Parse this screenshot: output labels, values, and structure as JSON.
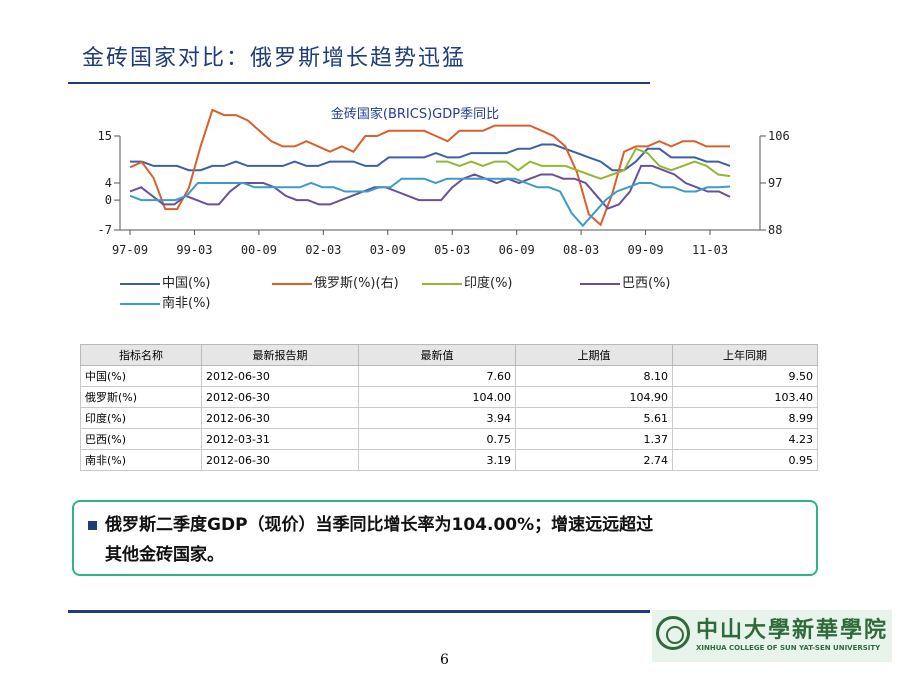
{
  "slide": {
    "title": "金砖国家对比：俄罗斯增长趋势迅猛",
    "page_number": "6"
  },
  "chart_data": {
    "type": "line",
    "title": "金砖国家(BRICS)GDP季同比",
    "x_ticks": [
      "97-09",
      "99-03",
      "00-09",
      "02-03",
      "03-09",
      "05-03",
      "06-09",
      "08-03",
      "09-09",
      "11-03"
    ],
    "left_y_ticks": [
      15,
      4,
      0,
      -7
    ],
    "right_y_ticks": [
      106,
      97,
      88
    ],
    "left_ylim": [
      -7,
      15
    ],
    "right_ylim": [
      88,
      106
    ],
    "series": [
      {
        "name": "中国(%)",
        "axis": "left",
        "color": "#3b5fa8",
        "values": [
          9,
          9,
          8,
          8,
          8,
          7,
          7,
          8,
          8,
          9,
          8,
          8,
          8,
          8,
          9,
          8,
          8,
          9,
          9,
          9,
          8,
          8,
          10,
          10,
          10,
          10,
          11,
          10,
          10,
          11,
          11,
          11,
          11,
          12,
          12,
          13,
          13,
          12,
          11,
          10,
          9,
          7,
          7,
          9,
          12,
          12,
          10,
          10,
          10,
          9,
          9,
          8
        ]
      },
      {
        "name": "俄罗斯(%)(右)",
        "axis": "right",
        "color": "#d9602a",
        "values": [
          100,
          101,
          98,
          92,
          92,
          96,
          104,
          111,
          110,
          110,
          109,
          107,
          105,
          104,
          104,
          105,
          104,
          103,
          104,
          103,
          106,
          106,
          107,
          107,
          107,
          107,
          106,
          105,
          107,
          107,
          107,
          108,
          108,
          108,
          108,
          107,
          106,
          104,
          99,
          91,
          89,
          95,
          103,
          104,
          104,
          105,
          104,
          105,
          105,
          104,
          104,
          104
        ]
      },
      {
        "name": "印度(%)",
        "axis": "left",
        "color": "#94b634",
        "values": [
          null,
          null,
          null,
          null,
          null,
          null,
          null,
          null,
          null,
          null,
          null,
          null,
          null,
          null,
          null,
          null,
          null,
          null,
          null,
          null,
          null,
          null,
          null,
          null,
          null,
          null,
          9,
          9,
          8,
          9,
          8,
          9,
          9,
          7,
          9,
          8,
          8,
          8,
          7,
          6,
          5,
          6,
          7,
          12,
          11,
          8,
          7,
          8,
          9,
          8,
          6,
          5.61
        ]
      },
      {
        "name": "巴西(%)",
        "axis": "left",
        "color": "#6a4f9c",
        "values": [
          2,
          3,
          1,
          -1,
          -1,
          1,
          0,
          -1,
          -1,
          2,
          4,
          4,
          4,
          3,
          1,
          0,
          0,
          -1,
          -1,
          0,
          1,
          2,
          3,
          3,
          2,
          1,
          0,
          0,
          0,
          3,
          5,
          6,
          5,
          4,
          5,
          4,
          5,
          6,
          6,
          5,
          5,
          4,
          1,
          -2,
          -1,
          2,
          8,
          8,
          7,
          6,
          4,
          3,
          2,
          2,
          0.75
        ]
      },
      {
        "name": "南非(%)",
        "axis": "left",
        "color": "#3a9cc9",
        "values": [
          1,
          0,
          0,
          0,
          0,
          1,
          4,
          4,
          4,
          4,
          4,
          3,
          3,
          3,
          3,
          3,
          4,
          3,
          3,
          2,
          2,
          2,
          3,
          3,
          5,
          5,
          5,
          4,
          5,
          5,
          5,
          5,
          5,
          5,
          5,
          4,
          3,
          3,
          2,
          -3,
          -6,
          -3,
          0,
          2,
          3,
          4,
          4,
          3,
          3,
          2,
          2,
          3,
          3,
          3.19
        ]
      }
    ]
  },
  "legend": [
    "中国(%)",
    "俄罗斯(%)(右)",
    "印度(%)",
    "巴西(%)",
    "南非(%)"
  ],
  "table": {
    "headers": [
      "指标名称",
      "最新报告期",
      "最新值",
      "上期值",
      "上年同期"
    ],
    "rows": [
      [
        "中国(%)",
        "2012-06-30",
        "7.60",
        "8.10",
        "9.50"
      ],
      [
        "俄罗斯(%)",
        "2012-06-30",
        "104.00",
        "104.90",
        "103.40"
      ],
      [
        "印度(%)",
        "2012-06-30",
        "3.94",
        "5.61",
        "8.99"
      ],
      [
        "巴西(%)",
        "2012-03-31",
        "0.75",
        "1.37",
        "4.23"
      ],
      [
        "南非(%)",
        "2012-06-30",
        "3.19",
        "2.74",
        "0.95"
      ]
    ]
  },
  "callout": {
    "line1": "俄罗斯二季度GDP（现价）当季同比增长率为104.00%；增速远远超过",
    "line2": "其他金砖国家。"
  },
  "logo": {
    "name_cn": "中山大學新華學院",
    "name_en": "XINHUA COLLEGE OF SUN YAT-SEN UNIVERSITY"
  }
}
